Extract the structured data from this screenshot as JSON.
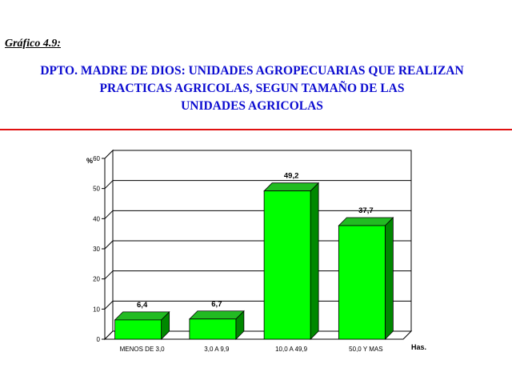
{
  "figure_label": "Gráfico 4.9:",
  "title_lines": [
    "DPTO. MADRE DE DIOS: UNIDADES AGROPECUARIAS QUE REALIZAN",
    "PRACTICAS AGRICOLAS, SEGUN TAMAÑO DE LAS",
    "UNIDADES AGRICOLAS"
  ],
  "colors": {
    "title": "#0b0bd0",
    "rule": "#e01010",
    "bar_front": "#00ff00",
    "bar_side": "#008800",
    "bar_top": "#22bb22"
  },
  "chart_data": {
    "type": "bar",
    "title": "",
    "ylabel": "%",
    "xlabel": "Has.",
    "categories": [
      "MENOS DE 3,0",
      "3,0  A 9,9",
      "10,0 A 49,9",
      "50,0 Y MAS"
    ],
    "values": [
      6.4,
      6.7,
      49.2,
      37.7
    ],
    "value_labels": [
      "6,4",
      "6,7",
      "49,2",
      "37,7"
    ],
    "ylim": [
      0,
      60
    ],
    "yticks": [
      "0",
      "10",
      "20",
      "30",
      "40",
      "50",
      "60"
    ],
    "grid": true,
    "style": "3d"
  }
}
